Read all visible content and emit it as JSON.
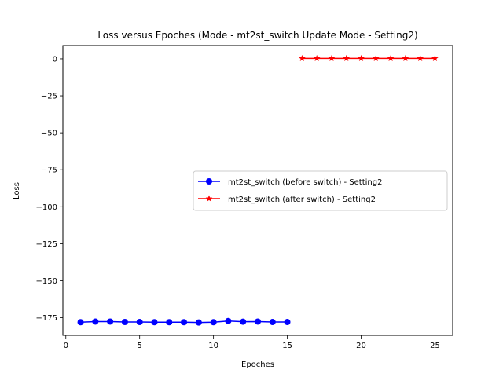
{
  "chart_data": {
    "type": "line",
    "title": "Loss versus Epoches (Mode - mt2st_switch Update Mode - Setting2)",
    "xlabel": "Epoches",
    "ylabel": "Loss",
    "xlim": [
      -0.2,
      26.2
    ],
    "ylim": [
      -186.9,
      9.0
    ],
    "xticks": [
      0,
      5,
      10,
      15,
      20,
      25
    ],
    "yticks": [
      0,
      -25,
      -50,
      -75,
      -100,
      -125,
      -150,
      -175
    ],
    "legend_position": "center-right",
    "grid": false,
    "series": [
      {
        "name": "mt2st_switch (before switch) - Setting2",
        "color": "#0000ff",
        "marker": "circle",
        "x": [
          1,
          2,
          3,
          4,
          5,
          6,
          7,
          8,
          9,
          10,
          11,
          12,
          13,
          14,
          15
        ],
        "values": [
          -178.0,
          -177.6,
          -177.6,
          -177.9,
          -177.9,
          -178.0,
          -178.0,
          -178.0,
          -178.2,
          -178.0,
          -177.2,
          -177.7,
          -177.6,
          -177.9,
          -177.9
        ]
      },
      {
        "name": "mt2st_switch (after switch) - Setting2",
        "color": "#ff0000",
        "marker": "star",
        "x": [
          16,
          17,
          18,
          19,
          20,
          21,
          22,
          23,
          24,
          25
        ],
        "values": [
          0.3,
          0.3,
          0.3,
          0.3,
          0.3,
          0.3,
          0.3,
          0.3,
          0.3,
          0.3
        ]
      }
    ]
  }
}
